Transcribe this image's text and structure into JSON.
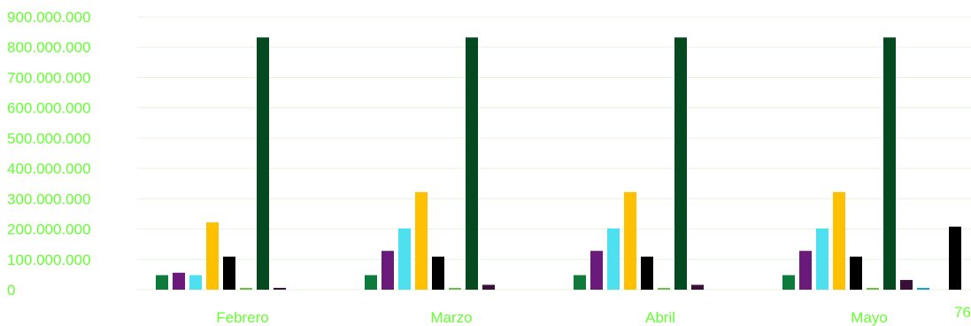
{
  "chart_data": {
    "type": "bar",
    "title": "",
    "xlabel": "",
    "ylabel": "",
    "ylim": [
      0,
      900000000
    ],
    "yticks": [
      "0",
      "100.000.000",
      "200.000.000",
      "300.000.000",
      "400.000.000",
      "500.000.000",
      "600.000.000",
      "700.000.000",
      "800.000.000",
      "900.000.000"
    ],
    "grid": true,
    "categories": [
      "Febrero",
      "Marzo",
      "Abril",
      "Mayo"
    ],
    "truncated_category_label": "76",
    "colors": [
      "#0e7a3c",
      "#6a1a7a",
      "#4fe0f0",
      "#ffc000",
      "#000000",
      "#6cc04a",
      "#04491f",
      "#3a0f3a",
      "#1aa3c9"
    ],
    "series": [
      {
        "values": [
          48000000,
          48000000,
          48000000,
          48000000
        ]
      },
      {
        "values": [
          56000000,
          128000000,
          128000000,
          128000000
        ]
      },
      {
        "values": [
          48000000,
          202000000,
          202000000,
          202000000
        ]
      },
      {
        "values": [
          222000000,
          322000000,
          322000000,
          322000000
        ]
      },
      {
        "values": [
          109000000,
          109000000,
          109000000,
          109000000
        ]
      },
      {
        "values": [
          6000000,
          6000000,
          6000000,
          6000000
        ]
      },
      {
        "values": [
          832000000,
          832000000,
          832000000,
          832000000
        ]
      },
      {
        "values": [
          6000000,
          16000000,
          16000000,
          32000000
        ]
      },
      {
        "values": [
          0,
          0,
          0,
          6000000
        ]
      }
    ],
    "partial_group": {
      "series_index": 4,
      "value": 208000000
    }
  }
}
